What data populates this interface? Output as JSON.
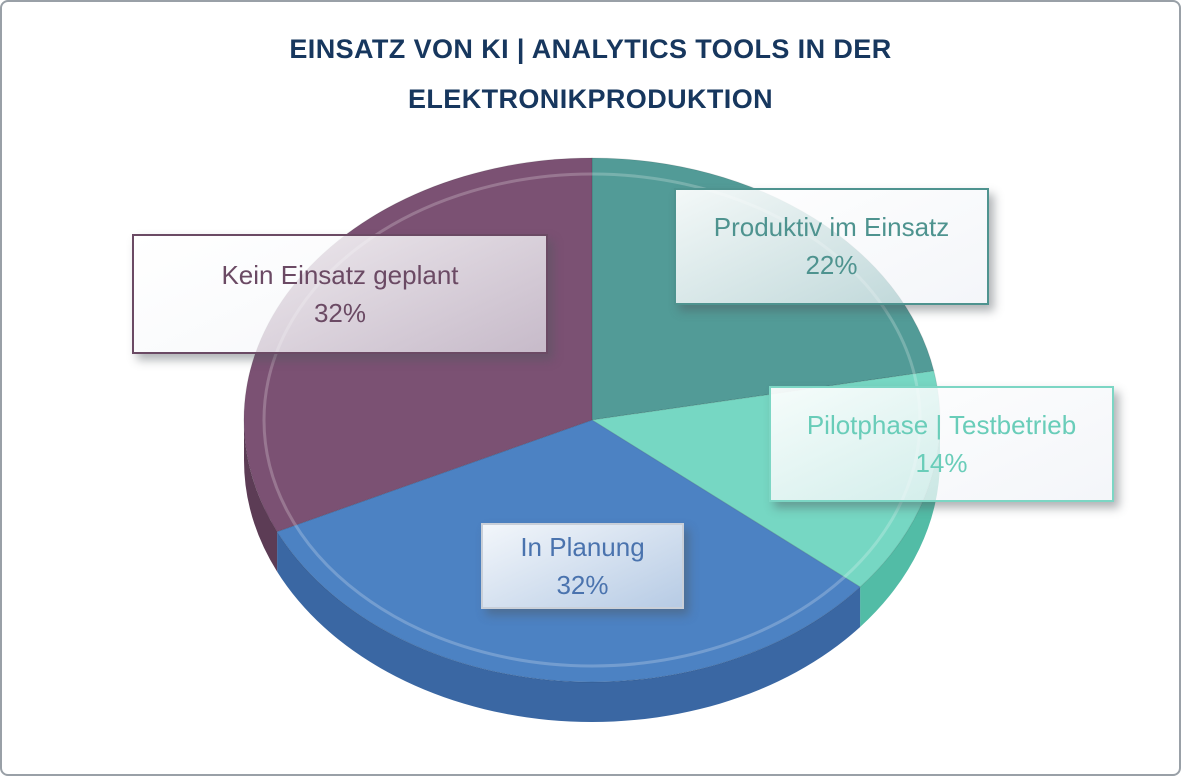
{
  "frame": {
    "border_color": "#99a0a7",
    "background": "#ffffff"
  },
  "title": {
    "line1": "EINSATZ VON KI | ANALYTICS TOOLS IN DER",
    "line2": "ELEKTRONIKPRODUKTION",
    "color": "#17375E"
  },
  "chart_data": {
    "type": "pie",
    "style": "3d",
    "title": "EINSATZ VON KI | ANALYTICS TOOLS IN DER ELEKTRONIKPRODUKTION",
    "unit": "%",
    "direction": "clockwise",
    "start_angle_deg": 0,
    "legend_position": "callout-boxes",
    "slices": [
      {
        "label": "Produktiv im Einsatz",
        "value": 22,
        "percent_label": "22%",
        "color": "#529B97",
        "side_color": "#3E807D",
        "callout_border": "#4E938F",
        "text_color": "#4E938F"
      },
      {
        "label": "Pilotphase | Testbetrieb",
        "value": 14,
        "percent_label": "14%",
        "color": "#76D7C3",
        "side_color": "#52BCA6",
        "callout_border": "#7CD6C4",
        "text_color": "#69CDB9"
      },
      {
        "label": "In Planung",
        "value": 32,
        "percent_label": "32%",
        "color": "#4C82C3",
        "side_color": "#3A67A3",
        "callout_border": "#C9CFD8",
        "text_color": "#4A73AE"
      },
      {
        "label": "Kein Einsatz geplant",
        "value": 32,
        "percent_label": "32%",
        "color": "#7B5173",
        "side_color": "#5C3C55",
        "callout_border": "#6B4A64",
        "text_color": "#6B4A64"
      }
    ]
  }
}
